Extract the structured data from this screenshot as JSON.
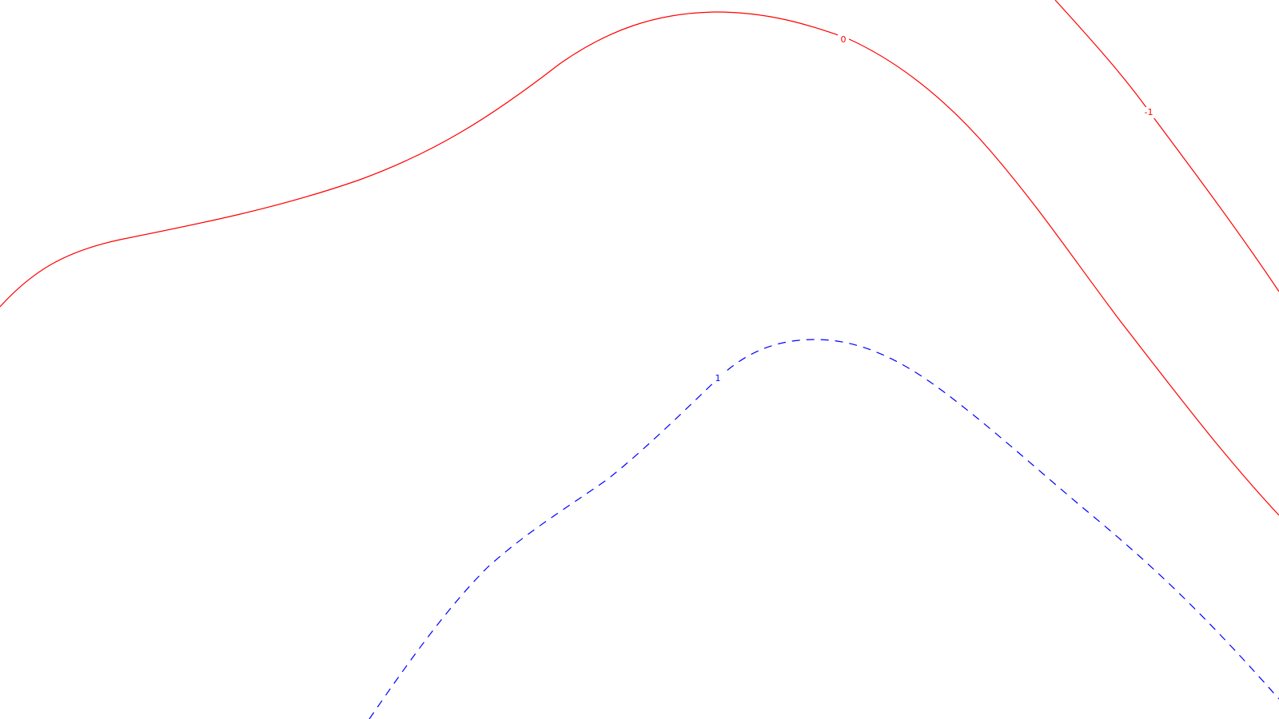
{
  "chart_data": {
    "type": "contour",
    "title": "",
    "xlabel": "",
    "ylabel": "",
    "grid": false,
    "contours": [
      {
        "level": 0,
        "label": "0",
        "color": "#ff0000",
        "style": "solid"
      },
      {
        "level": -1,
        "label": "-1",
        "color": "#ff0000",
        "style": "solid"
      },
      {
        "level": 1,
        "label": "1",
        "color": "#0000ff",
        "style": "dashed"
      }
    ]
  }
}
